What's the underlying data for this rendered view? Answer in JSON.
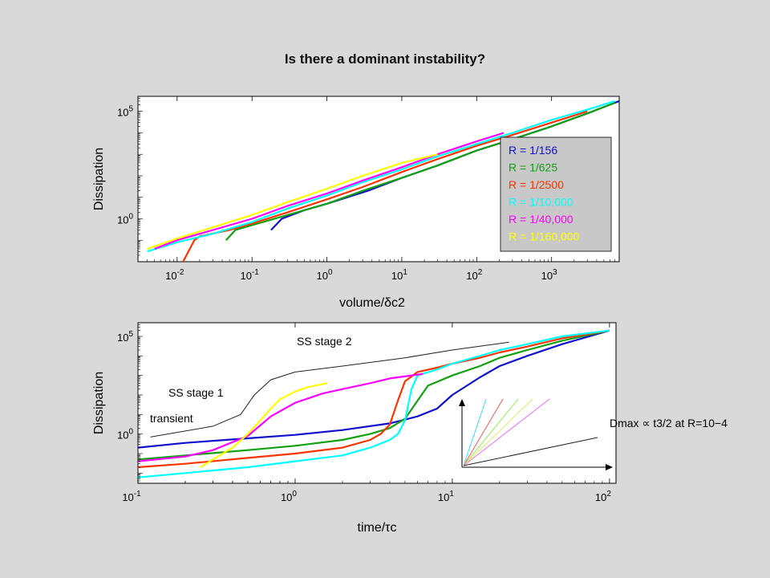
{
  "title": "Is there a dominant instability?",
  "chart_data": [
    {
      "type": "line",
      "xlabel": "volume/δc2",
      "ylabel": "Dissipation",
      "xscale": "log",
      "yscale": "log",
      "xlim": [
        0.003,
        8000
      ],
      "ylim": [
        0.01,
        500000
      ],
      "xticks": [
        "10-2",
        "10-1",
        "100",
        "101",
        "102",
        "103"
      ],
      "yticks": [
        "100",
        "105"
      ],
      "legend_position": "right",
      "legend": [
        {
          "label": "R = 1/156",
          "color": "#1010d0"
        },
        {
          "label": "R = 1/625",
          "color": "#10a010"
        },
        {
          "label": "R = 1/2500",
          "color": "#ff3300"
        },
        {
          "label": "R = 1/10,000",
          "color": "#00ffff"
        },
        {
          "label": "R = 1/40,000",
          "color": "#ff00ff"
        },
        {
          "label": "R = 1/160,000",
          "color": "#ffff00"
        }
      ],
      "series": [
        {
          "name": "R = 1/156",
          "color": "#1010d0",
          "x": [
            0.18,
            0.25,
            0.5,
            1,
            3.5,
            10,
            30,
            100,
            300,
            1000,
            3000,
            8000
          ],
          "y": [
            0.3,
            1,
            2.5,
            5,
            20,
            80,
            300,
            1500,
            5000,
            20000,
            80000,
            300000
          ]
        },
        {
          "name": "R = 1/625",
          "color": "#10a010",
          "x": [
            0.045,
            0.06,
            0.1,
            0.3,
            1,
            3,
            10,
            30,
            100,
            300,
            1000,
            3000,
            7000
          ],
          "y": [
            0.1,
            0.3,
            0.5,
            1.5,
            5,
            20,
            80,
            300,
            1500,
            5000,
            20000,
            80000,
            250000
          ]
        },
        {
          "name": "R = 1/2500",
          "color": "#ff3300",
          "x": [
            0.012,
            0.017,
            0.02,
            0.05,
            0.1,
            0.3,
            1,
            3,
            10,
            30,
            100,
            300,
            1000,
            3000
          ],
          "y": [
            0.01,
            0.1,
            0.15,
            0.3,
            0.6,
            2,
            8,
            30,
            150,
            600,
            2500,
            8000,
            30000,
            100000
          ]
        },
        {
          "name": "R = 1/10,000",
          "color": "#00ffff",
          "x": [
            0.004,
            0.01,
            0.03,
            0.1,
            0.3,
            1,
            3,
            10,
            30,
            100,
            300,
            1000,
            3000,
            7000
          ],
          "y": [
            0.03,
            0.08,
            0.2,
            0.7,
            3,
            12,
            50,
            200,
            800,
            3000,
            10000,
            40000,
            120000,
            300000
          ]
        },
        {
          "name": "R = 1/40,000",
          "color": "#ff00ff",
          "x": [
            0.005,
            0.01,
            0.03,
            0.1,
            0.3,
            1,
            3,
            10,
            30,
            100,
            230
          ],
          "y": [
            0.04,
            0.1,
            0.3,
            1,
            4,
            15,
            60,
            250,
            1000,
            4000,
            10000
          ]
        },
        {
          "name": "R = 1/160,000",
          "color": "#ffff00",
          "x": [
            0.004,
            0.01,
            0.03,
            0.1,
            0.3,
            1,
            3,
            10,
            30
          ],
          "y": [
            0.04,
            0.12,
            0.4,
            1.5,
            6,
            25,
            100,
            400,
            1000
          ]
        }
      ]
    },
    {
      "type": "line",
      "xlabel": "time/τc",
      "ylabel": "Dissipation",
      "xscale": "log",
      "yscale": "log",
      "xlim": [
        0.1,
        110
      ],
      "ylim": [
        0.003,
        500000
      ],
      "xticks": [
        "10-1",
        "100",
        "101",
        "102"
      ],
      "yticks": [
        "100",
        "105"
      ],
      "annotations": [
        "SS stage 2",
        "SS stage 1",
        "transient"
      ],
      "guide_curve": {
        "x": [
          0.12,
          0.3,
          0.45,
          0.55,
          0.7,
          1.0,
          2,
          5,
          10,
          23
        ],
        "y": [
          0.7,
          2.5,
          10,
          100,
          600,
          1500,
          3000,
          8000,
          20000,
          50000
        ]
      },
      "inset": {
        "label": "Dmax ∝ t3/2 at R=10−4",
        "fan_colors": [
          "#33ddff",
          "#ff5555",
          "#99ee55",
          "#ddee66",
          "#ff66ff",
          "#222222"
        ]
      },
      "series": [
        {
          "name": "R = 1/156",
          "color": "#1010d0",
          "x": [
            0.1,
            0.2,
            0.5,
            1,
            2,
            4,
            6,
            8,
            10,
            15,
            20,
            30,
            50,
            100
          ],
          "y": [
            0.2,
            0.35,
            0.6,
            0.9,
            1.6,
            3.5,
            8,
            20,
            100,
            800,
            3000,
            10000,
            40000,
            200000
          ]
        },
        {
          "name": "R = 1/625",
          "color": "#10a010",
          "x": [
            0.1,
            0.2,
            0.5,
            1,
            2,
            3,
            4,
            5,
            6,
            7,
            10,
            15,
            20,
            30,
            50,
            100
          ],
          "y": [
            0.05,
            0.08,
            0.15,
            0.25,
            0.5,
            1,
            2,
            6,
            50,
            300,
            1000,
            3000,
            8000,
            20000,
            60000,
            200000
          ]
        },
        {
          "name": "R = 1/2500",
          "color": "#ff3300",
          "x": [
            0.1,
            0.2,
            0.5,
            1,
            2,
            3,
            3.5,
            4,
            4.5,
            5,
            6,
            8,
            10,
            15,
            20,
            30,
            50,
            100
          ],
          "y": [
            0.02,
            0.03,
            0.06,
            0.1,
            0.2,
            0.5,
            1,
            3,
            50,
            500,
            1500,
            2500,
            4000,
            8000,
            15000,
            30000,
            80000,
            200000
          ]
        },
        {
          "name": "R = 1/10,000",
          "color": "#00ffff",
          "x": [
            0.1,
            0.2,
            0.5,
            1,
            2,
            3,
            4,
            4.5,
            5,
            5.5,
            6,
            8,
            10,
            15,
            20,
            30,
            50,
            100
          ],
          "y": [
            0.006,
            0.01,
            0.02,
            0.04,
            0.08,
            0.2,
            0.5,
            1,
            5,
            200,
            1000,
            2000,
            4000,
            10000,
            20000,
            40000,
            100000,
            200000
          ]
        },
        {
          "name": "R = 1/40,000",
          "color": "#ff00ff",
          "x": [
            0.1,
            0.2,
            0.3,
            0.5,
            0.7,
            1,
            1.5,
            2,
            3,
            4,
            6.5
          ],
          "y": [
            0.04,
            0.07,
            0.15,
            0.8,
            8,
            40,
            120,
            200,
            400,
            700,
            1200
          ]
        },
        {
          "name": "R = 1/160,000",
          "color": "#ffff00",
          "x": [
            0.25,
            0.3,
            0.4,
            0.5,
            0.6,
            0.7,
            0.8,
            1,
            1.2,
            1.6
          ],
          "y": [
            0.02,
            0.05,
            0.2,
            1,
            5,
            20,
            60,
            150,
            250,
            400
          ]
        }
      ]
    }
  ]
}
